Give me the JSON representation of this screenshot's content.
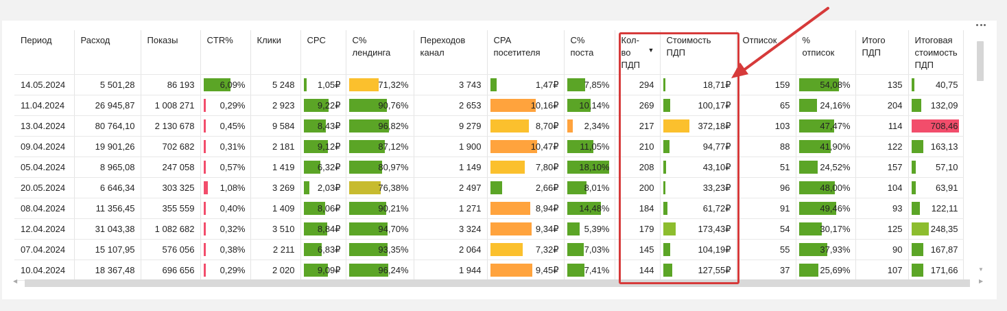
{
  "colors": {
    "green": "#5ba526",
    "red": "#f24d6b",
    "yellow": "#fbc02d",
    "orange": "#ffa33d",
    "olive": "#c7bb2f",
    "light_green": "#8dbd2e",
    "annotation": "#d63a3a"
  },
  "headers": [
    "Период",
    "Расход",
    "Показы",
    "CTR%",
    "Клики",
    "CPC",
    "С%\nлендинга",
    "Переходов\nканал",
    "CPA\nпосетителя",
    "С%\nпоста",
    "Кол-\nво\nПДП",
    "Стоимость\nПДП",
    "Отписок",
    "%\nотписок",
    "Итого\nПДП",
    "Итоговая\nстоимость\nПДП"
  ],
  "rows": [
    [
      "14.05.2024",
      "5 501,28",
      "86 193",
      "6,09%",
      "5 248",
      "1,05₽",
      "71,32%",
      "3 743",
      "1,47₽",
      "7,85%",
      "294",
      "18,71₽",
      "159",
      "54,08%",
      "135",
      "40,75"
    ],
    [
      "11.04.2024",
      "26 945,87",
      "1 008 271",
      "0,29%",
      "2 923",
      "9,22₽",
      "90,76%",
      "2 653",
      "10,16₽",
      "10,14%",
      "269",
      "100,17₽",
      "65",
      "24,16%",
      "204",
      "132,09"
    ],
    [
      "13.04.2024",
      "80 764,10",
      "2 130 678",
      "0,45%",
      "9 584",
      "8,43₽",
      "96,82%",
      "9 279",
      "8,70₽",
      "2,34%",
      "217",
      "372,18₽",
      "103",
      "47,47%",
      "114",
      "708,46"
    ],
    [
      "09.04.2024",
      "19 901,26",
      "702 682",
      "0,31%",
      "2 181",
      "9,12₽",
      "87,12%",
      "1 900",
      "10,47₽",
      "11,05%",
      "210",
      "94,77₽",
      "88",
      "41,90%",
      "122",
      "163,13"
    ],
    [
      "05.04.2024",
      "8 965,08",
      "247 058",
      "0,57%",
      "1 419",
      "6,32₽",
      "80,97%",
      "1 149",
      "7,80₽",
      "18,10%",
      "208",
      "43,10₽",
      "51",
      "24,52%",
      "157",
      "57,10"
    ],
    [
      "20.05.2024",
      "6 646,34",
      "303 325",
      "1,08%",
      "3 269",
      "2,03₽",
      "76,38%",
      "2 497",
      "2,66₽",
      "8,01%",
      "200",
      "33,23₽",
      "96",
      "48,00%",
      "104",
      "63,91"
    ],
    [
      "08.04.2024",
      "11 356,45",
      "355 559",
      "0,40%",
      "1 409",
      "8,06₽",
      "90,21%",
      "1 271",
      "8,94₽",
      "14,48%",
      "184",
      "61,72₽",
      "91",
      "49,46%",
      "93",
      "122,11"
    ],
    [
      "12.04.2024",
      "31 043,38",
      "1 082 682",
      "0,32%",
      "3 510",
      "8,84₽",
      "94,70%",
      "3 324",
      "9,34₽",
      "5,39%",
      "179",
      "173,43₽",
      "54",
      "30,17%",
      "125",
      "248,35"
    ],
    [
      "07.04.2024",
      "15 107,95",
      "576 056",
      "0,38%",
      "2 211",
      "6,83₽",
      "93,35%",
      "2 064",
      "7,32₽",
      "7,03%",
      "145",
      "104,19₽",
      "55",
      "37,93%",
      "90",
      "167,87"
    ],
    [
      "10.04.2024",
      "18 367,48",
      "696 656",
      "0,29%",
      "2 020",
      "9,09₽",
      "96,24%",
      "1 944",
      "9,45₽",
      "7,41%",
      "144",
      "127,55₽",
      "37",
      "25,69%",
      "107",
      "171,66"
    ]
  ],
  "bar_levels": {
    "3": [
      0.6,
      0.03,
      0.04,
      0.03,
      0.05,
      0.09,
      0.04,
      0.03,
      0.04,
      0.03
    ],
    "5": [
      0.07,
      0.62,
      0.56,
      0.61,
      0.42,
      0.13,
      0.54,
      0.59,
      0.45,
      0.61
    ],
    "6": [
      0.47,
      0.6,
      0.64,
      0.57,
      0.53,
      0.5,
      0.59,
      0.62,
      0.61,
      0.63
    ],
    "8": [
      0.09,
      0.63,
      0.54,
      0.65,
      0.48,
      0.16,
      0.56,
      0.58,
      0.45,
      0.59
    ],
    "9": [
      0.4,
      0.52,
      0.12,
      0.57,
      0.93,
      0.42,
      0.74,
      0.28,
      0.36,
      0.38
    ],
    "11": [
      0.02,
      0.1,
      0.37,
      0.09,
      0.04,
      0.03,
      0.06,
      0.17,
      0.1,
      0.13
    ],
    "13": [
      0.74,
      0.33,
      0.65,
      0.58,
      0.34,
      0.66,
      0.68,
      0.42,
      0.52,
      0.36
    ],
    "15": [
      0.06,
      0.19,
      0.96,
      0.23,
      0.08,
      0.09,
      0.17,
      0.35,
      0.24,
      0.24
    ]
  },
  "bar_colors": {
    "3": [
      "green",
      "red",
      "red",
      "red",
      "red",
      "red",
      "red",
      "red",
      "red",
      "red"
    ],
    "5": [
      "green",
      "green",
      "green",
      "green",
      "green",
      "green",
      "green",
      "green",
      "green",
      "green"
    ],
    "6": [
      "yellow",
      "green",
      "green",
      "green",
      "green",
      "olive",
      "green",
      "green",
      "green",
      "green"
    ],
    "8": [
      "green",
      "orange",
      "yellow",
      "orange",
      "yellow",
      "green",
      "orange",
      "orange",
      "yellow",
      "orange"
    ],
    "9": [
      "green",
      "green",
      "orange",
      "green",
      "green",
      "green",
      "green",
      "green",
      "green",
      "green"
    ],
    "11": [
      "green",
      "green",
      "yellow",
      "green",
      "green",
      "green",
      "green",
      "light_green",
      "green",
      "green"
    ],
    "13": [
      "green",
      "green",
      "green",
      "green",
      "green",
      "green",
      "green",
      "green",
      "green",
      "green"
    ],
    "15": [
      "green",
      "green",
      "red",
      "green",
      "green",
      "green",
      "green",
      "light_green",
      "green",
      "green"
    ]
  },
  "sort_indicator": "▼"
}
